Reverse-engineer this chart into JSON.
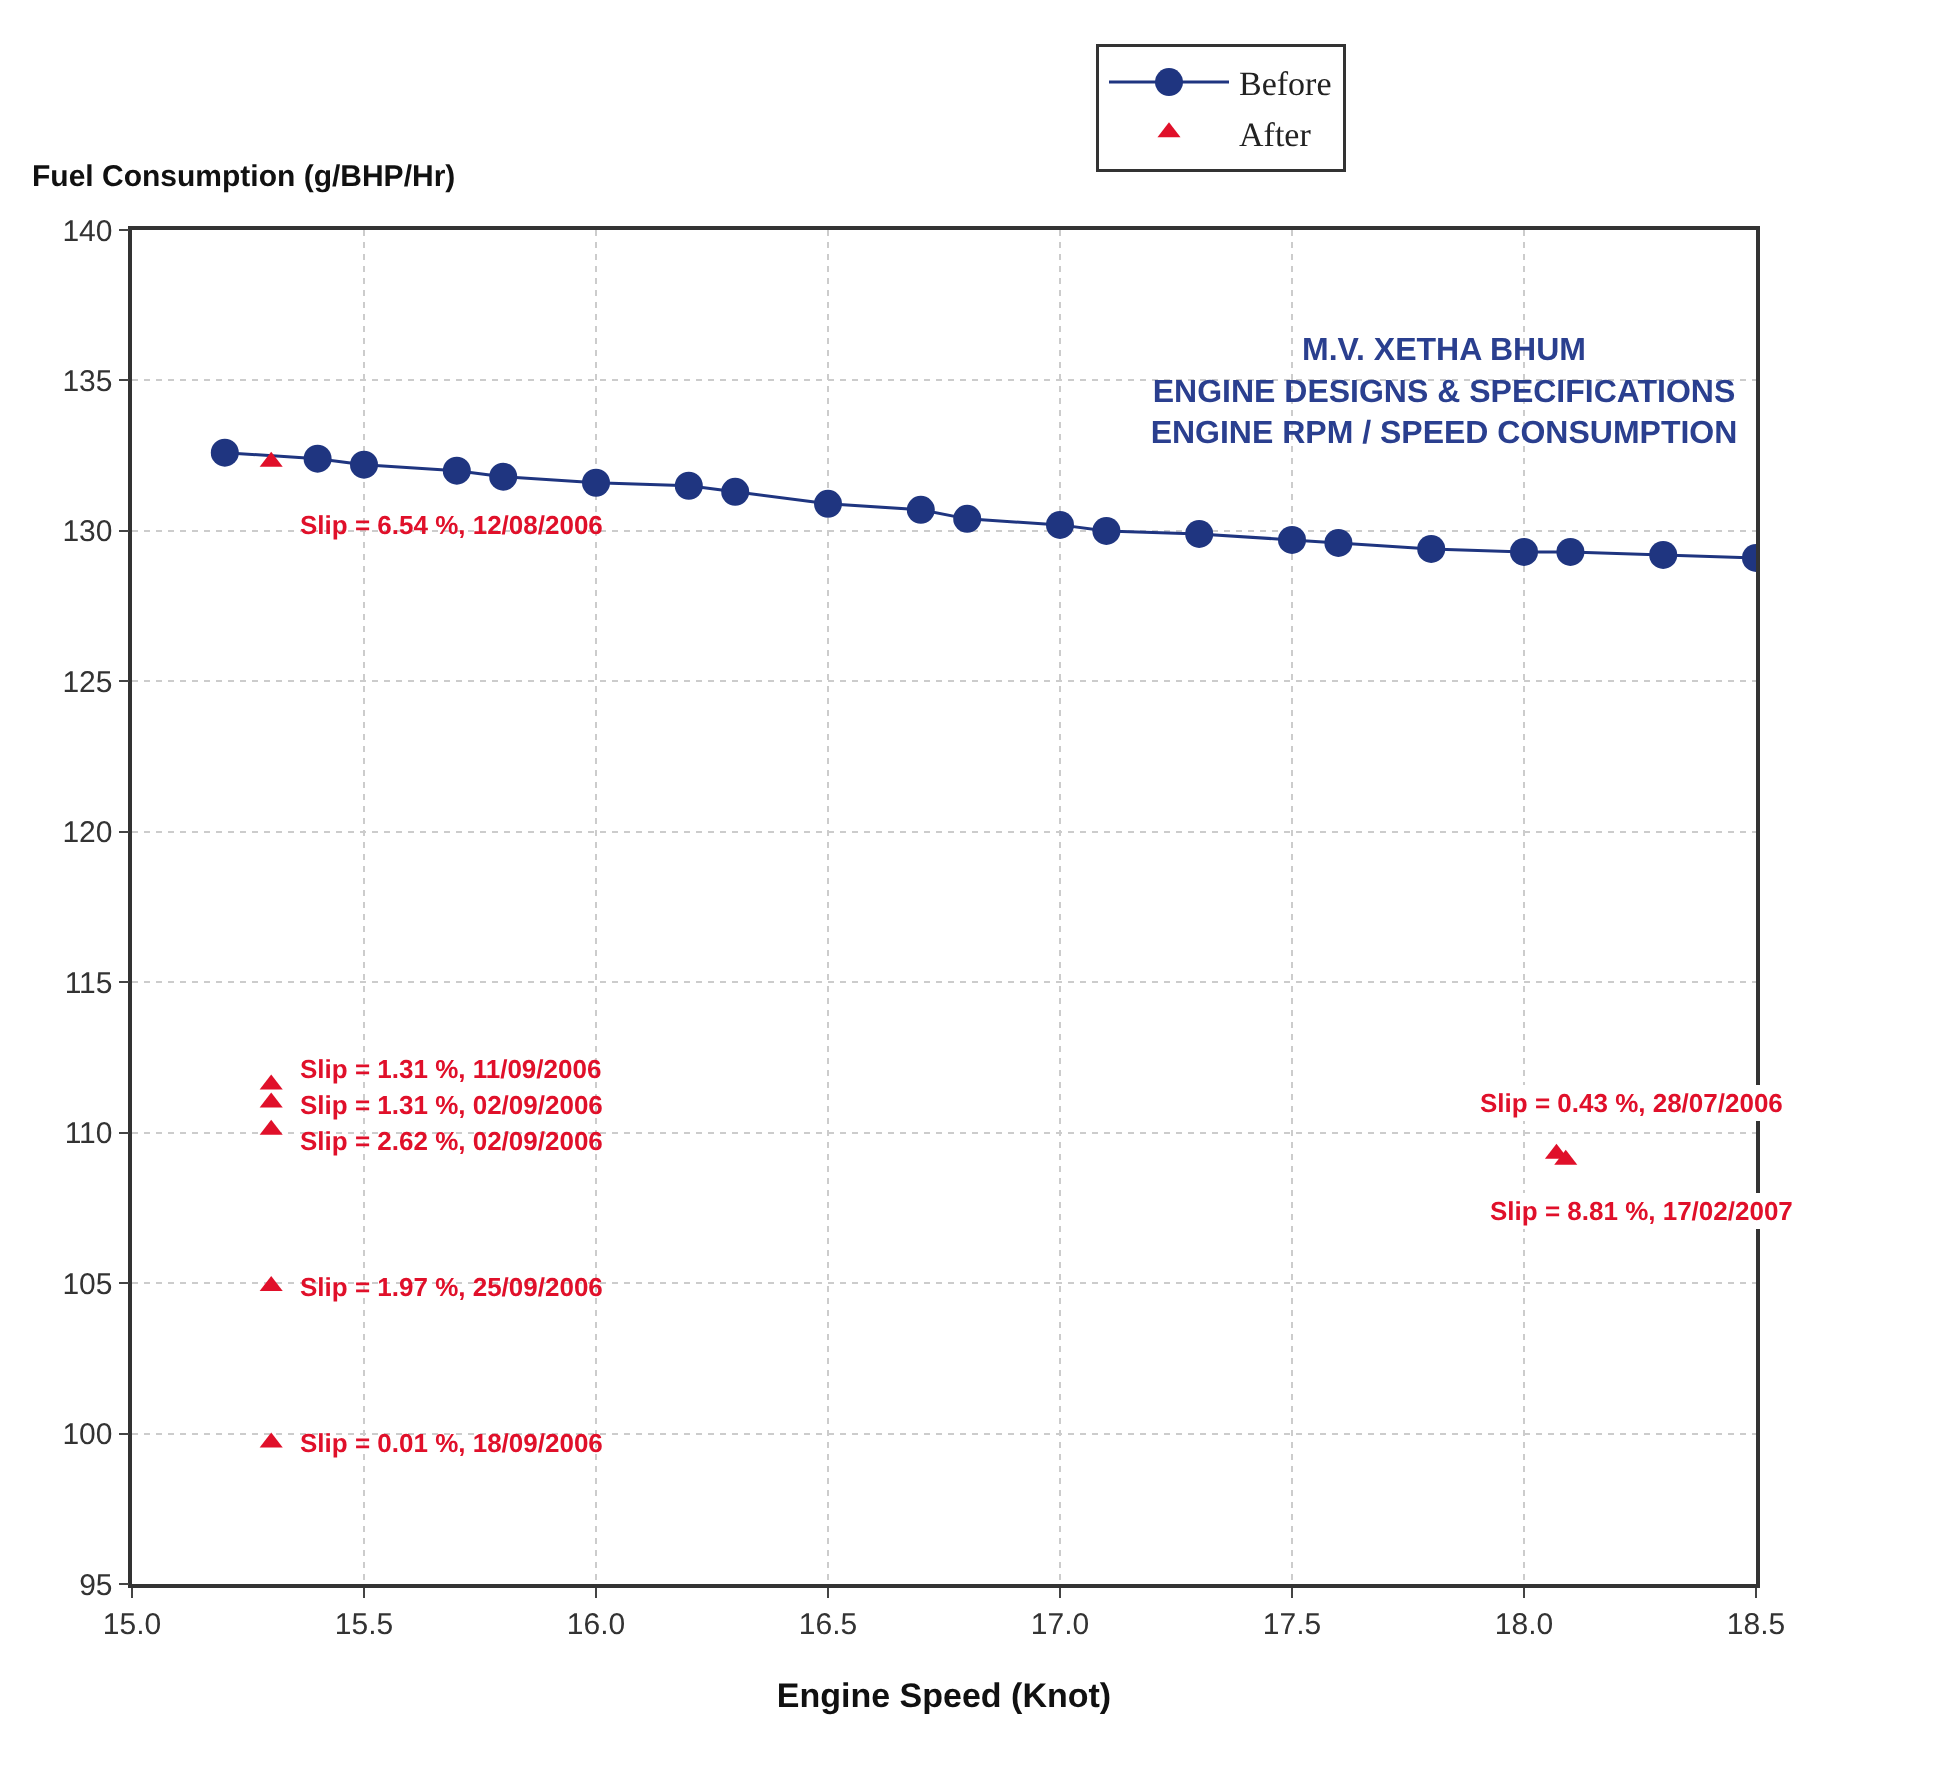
{
  "chart_data": {
    "type": "scatter",
    "title": "M.V. XETHA BHUM\nENGINE DESIGNS & SPECIFICATIONS\nENGINE RPM / SPEED CONSUMPTION",
    "xlabel": "Engine Speed (Knot)",
    "ylabel": "Fuel Consumption (g/BHP/Hr)",
    "series": [
      {
        "name": "Before",
        "type": "line",
        "marker": "circle",
        "line_style": "solid",
        "color": "#1f3580",
        "x": [
          15.2,
          15.4,
          15.5,
          15.7,
          15.8,
          16.0,
          16.2,
          16.3,
          16.5,
          16.7,
          16.8,
          17.0,
          17.1,
          17.3,
          17.5,
          17.6,
          17.8,
          18.0,
          18.1,
          18.3,
          18.5
        ],
        "values": [
          132.6,
          132.4,
          132.2,
          132.0,
          131.8,
          131.6,
          131.5,
          131.3,
          130.9,
          130.7,
          130.4,
          130.2,
          130.0,
          129.9,
          129.7,
          129.6,
          129.4,
          129.3,
          129.3,
          129.2,
          129.1
        ]
      },
      {
        "name": "After",
        "marker": "triangle",
        "color": "#e0102a",
        "x": [
          15.3,
          15.3,
          15.3,
          15.3,
          15.3,
          15.3,
          18.07,
          18.09
        ],
        "values": [
          132.3,
          111.6,
          111.0,
          110.1,
          104.9,
          99.7,
          109.3,
          109.1
        ]
      }
    ],
    "annotations": [
      {
        "text": "Slip = 6.54 %, 12/08/2006",
        "x": 15.3,
        "y": 132.3
      },
      {
        "text": "Slip = 1.31 %, 11/09/2006",
        "x": 15.3,
        "y": 111.6
      },
      {
        "text": "Slip = 1.31 %, 02/09/2006",
        "x": 15.3,
        "y": 111.0
      },
      {
        "text": "Slip = 2.62 %, 02/09/2006",
        "x": 15.3,
        "y": 110.1
      },
      {
        "text": "Slip = 1.97 %, 25/09/2006",
        "x": 15.3,
        "y": 104.9
      },
      {
        "text": "Slip = 0.01 %, 18/09/2006",
        "x": 15.3,
        "y": 99.7
      },
      {
        "text": "Slip = 0.43 %, 28/07/2006",
        "x": 18.07,
        "y": 109.3
      },
      {
        "text": "Slip = 8.81 %, 17/02/2007",
        "x": 18.09,
        "y": 109.1
      }
    ],
    "xlim": [
      15.0,
      18.5
    ],
    "ylim": [
      95,
      140
    ],
    "xticks": [
      {
        "value": 15.0,
        "label": "15.0"
      },
      15.5,
      {
        "value": 16.0,
        "label": "16.0"
      },
      16.5,
      {
        "value": 17.0,
        "label": "17.0"
      },
      17.5,
      {
        "value": 18.0,
        "label": "18.0"
      },
      18.5
    ],
    "yticks": [
      95,
      100,
      105,
      110,
      115,
      120,
      125,
      130,
      135,
      140
    ],
    "grid": true,
    "legend": "top"
  }
}
